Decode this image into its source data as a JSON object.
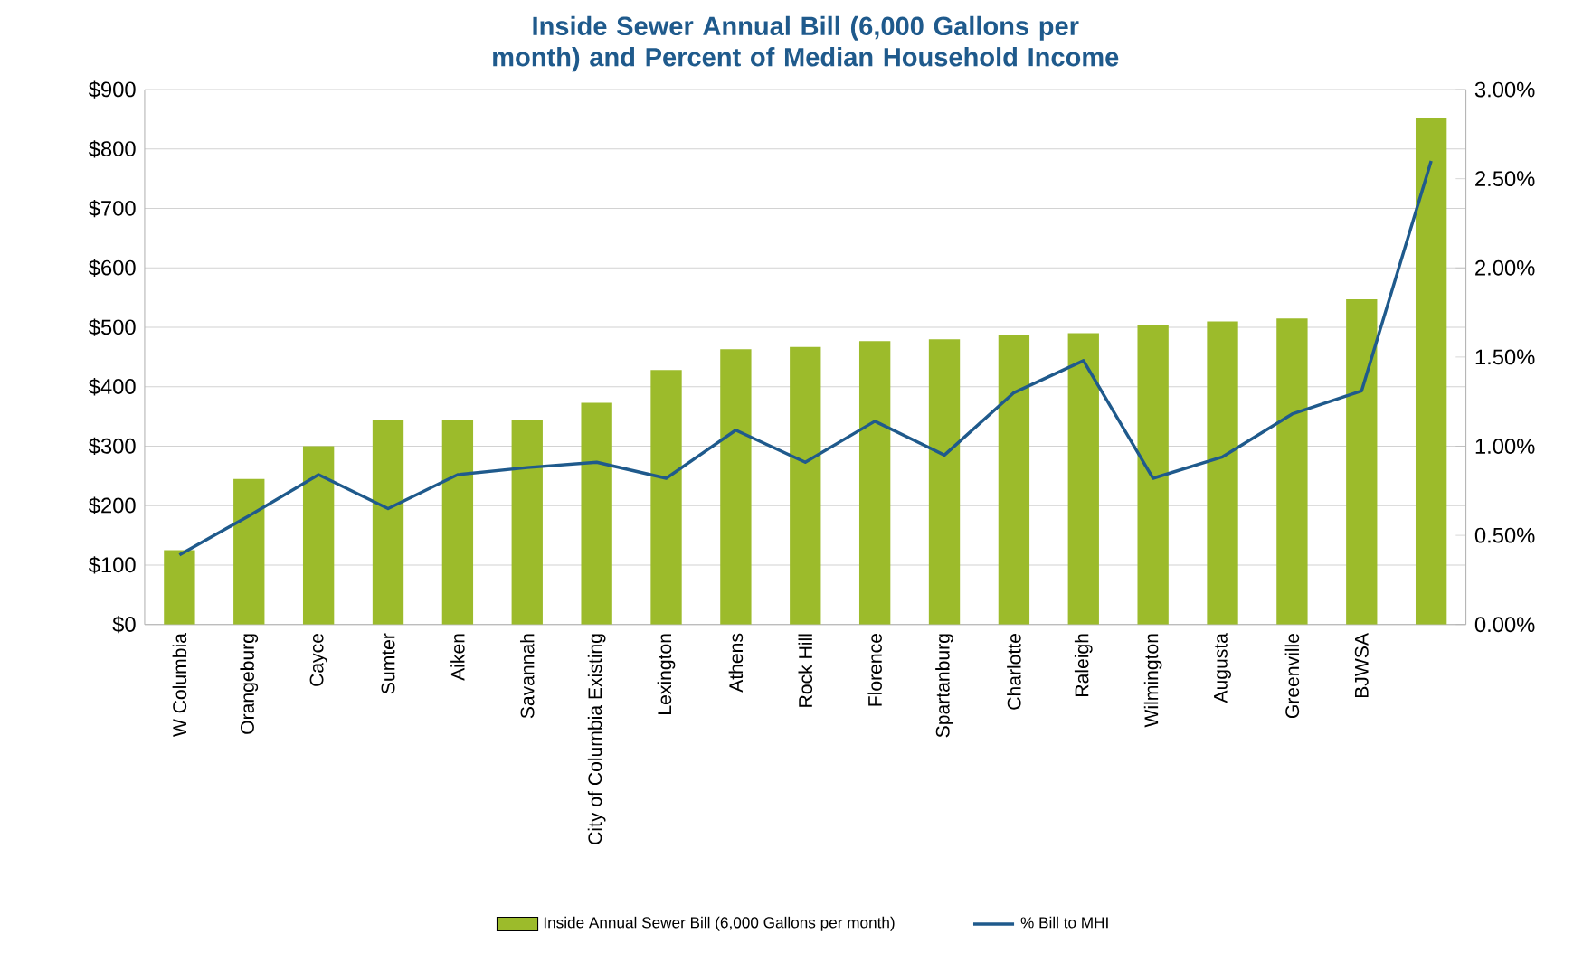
{
  "chart_data": {
    "type": "bar",
    "title": "Inside Sewer Annual Bill (6,000 Gallons per month) and Percent of Median Household Income",
    "categories": [
      "W Columbia",
      "Orangeburg",
      "Cayce",
      "Sumter",
      "Aiken",
      "Savannah",
      "City of Columbia Existing",
      "Lexington",
      "Athens",
      "Rock Hill",
      "Florence",
      "Spartanburg",
      "Charlotte",
      "Raleigh",
      "Wilmington",
      "Augusta",
      "Greenville",
      "BJWSA",
      null
    ],
    "series": [
      {
        "name": "Inside Annual Sewer Bill (6,000 Gallons per month)",
        "color": "#9cbb2b",
        "values": [
          125,
          245,
          300,
          345,
          345,
          345,
          373,
          428,
          463,
          467,
          477,
          480,
          487,
          490,
          503,
          510,
          515,
          547,
          853
        ]
      },
      {
        "name": "% Bill to MHI",
        "type": "line",
        "axis": "y2",
        "color": "#1f5a8c",
        "values": [
          0.39,
          0.61,
          0.84,
          0.65,
          0.84,
          0.88,
          0.91,
          0.82,
          1.09,
          0.91,
          1.14,
          0.95,
          1.3,
          1.48,
          0.82,
          0.94,
          1.18,
          1.31,
          2.6
        ]
      }
    ],
    "ylim": [
      0,
      900
    ],
    "yticks": [
      {
        "value": 0,
        "label": "$0"
      },
      {
        "value": 100,
        "label": "$100"
      },
      {
        "value": 200,
        "label": "$200"
      },
      {
        "value": 300,
        "label": "$300"
      },
      {
        "value": 400,
        "label": "$400"
      },
      {
        "value": 500,
        "label": "$500"
      },
      {
        "value": 600,
        "label": "$600"
      },
      {
        "value": 700,
        "label": "$700"
      },
      {
        "value": 800,
        "label": "$800"
      },
      {
        "value": 900,
        "label": "$900"
      }
    ],
    "y2lim": [
      0,
      3
    ],
    "y2ticks": [
      {
        "value": 0,
        "label": "0.00%"
      },
      {
        "value": 0.5,
        "label": "0.50%"
      },
      {
        "value": 1,
        "label": "1.00%"
      },
      {
        "value": 1.5,
        "label": "1.50%"
      },
      {
        "value": 2,
        "label": "2.00%"
      },
      {
        "value": 2.5,
        "label": "2.50%"
      },
      {
        "value": 3,
        "label": "3.00%"
      }
    ],
    "grid": "y",
    "legend": "bottom",
    "marker": "none",
    "line_style": "solid"
  }
}
